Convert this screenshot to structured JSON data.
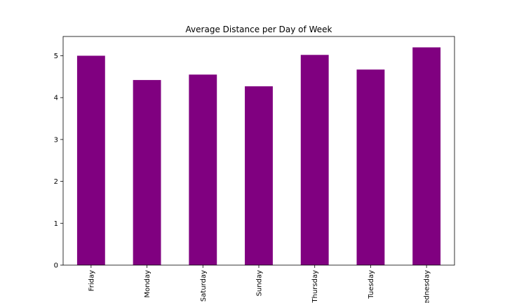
{
  "chart_data": {
    "type": "bar",
    "title": "Average Distance per Day of Week",
    "xlabel": "",
    "ylabel": "",
    "categories": [
      "Friday",
      "Monday",
      "Saturday",
      "Sunday",
      "Thursday",
      "Tuesday",
      "Wednesday"
    ],
    "values": [
      5.0,
      4.42,
      4.55,
      4.27,
      5.02,
      4.67,
      5.2
    ],
    "ylim": [
      0,
      5.46
    ],
    "yticks": [
      0,
      1,
      2,
      3,
      4,
      5
    ],
    "bar_color": "#800080",
    "grid": false,
    "legend": "none"
  }
}
